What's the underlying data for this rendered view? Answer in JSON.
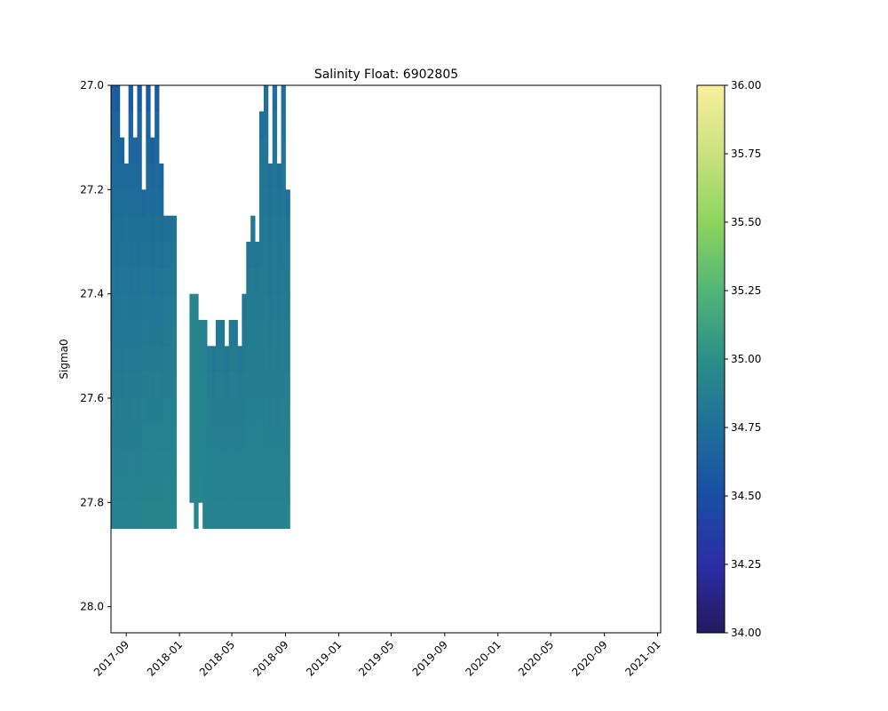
{
  "chart_data": {
    "type": "heatmap",
    "title": "Salinity Float: 6902805",
    "xlabel": "",
    "ylabel": "Sigma0",
    "x_axis_type": "date",
    "xlim": [
      "2017-07-28",
      "2021-01-08"
    ],
    "ylim": [
      28.05,
      27.0
    ],
    "y_inverted": true,
    "x_ticks": [
      "2017-09",
      "2018-01",
      "2018-05",
      "2018-09",
      "2019-01",
      "2019-05",
      "2019-09",
      "2020-01",
      "2020-05",
      "2020-09",
      "2021-01"
    ],
    "y_ticks": [
      "27.0",
      "27.2",
      "27.4",
      "27.6",
      "27.8",
      "28.0"
    ],
    "colormap": "summer-like blue-green-yellow",
    "colorbar": {
      "vmin": 34.0,
      "vmax": 36.0,
      "ticks": [
        "34.00",
        "34.25",
        "34.50",
        "34.75",
        "35.00",
        "35.25",
        "35.50",
        "35.75",
        "36.00"
      ],
      "colors": [
        {
          "v": 34.0,
          "c": "#231a5e"
        },
        {
          "v": 34.25,
          "c": "#2b2ea6"
        },
        {
          "v": 34.5,
          "c": "#1a4ea4"
        },
        {
          "v": 34.75,
          "c": "#1f6f98"
        },
        {
          "v": 35.0,
          "c": "#2a8f88"
        },
        {
          "v": 35.25,
          "c": "#52b577"
        },
        {
          "v": 35.5,
          "c": "#8ed45e"
        },
        {
          "v": 35.75,
          "c": "#c9e27f"
        },
        {
          "v": 36.0,
          "c": "#f9ef9f"
        }
      ]
    },
    "profiles": [
      {
        "date": "2017-07-28",
        "smin": 27.0,
        "smax": 27.85,
        "s_top": 34.62,
        "s_bot": 34.9
      },
      {
        "date": "2017-08-07",
        "smin": 27.0,
        "smax": 27.85,
        "s_top": 34.6,
        "s_bot": 34.9
      },
      {
        "date": "2017-08-17",
        "smin": 27.1,
        "smax": 27.85,
        "s_top": 34.66,
        "s_bot": 34.9
      },
      {
        "date": "2017-08-27",
        "smin": 27.15,
        "smax": 27.85,
        "s_top": 34.7,
        "s_bot": 34.9
      },
      {
        "date": "2017-09-06",
        "smin": 27.0,
        "smax": 27.85,
        "s_top": 34.6,
        "s_bot": 34.9
      },
      {
        "date": "2017-09-16",
        "smin": 27.1,
        "smax": 27.85,
        "s_top": 34.66,
        "s_bot": 34.9
      },
      {
        "date": "2017-09-26",
        "smin": 27.0,
        "smax": 27.85,
        "s_top": 34.6,
        "s_bot": 34.9
      },
      {
        "date": "2017-10-06",
        "smin": 27.2,
        "smax": 27.85,
        "s_top": 34.7,
        "s_bot": 34.92
      },
      {
        "date": "2017-10-16",
        "smin": 27.0,
        "smax": 27.85,
        "s_top": 34.6,
        "s_bot": 34.92
      },
      {
        "date": "2017-10-26",
        "smin": 27.1,
        "smax": 27.85,
        "s_top": 34.62,
        "s_bot": 34.92
      },
      {
        "date": "2017-11-05",
        "smin": 27.0,
        "smax": 27.85,
        "s_top": 34.6,
        "s_bot": 34.92
      },
      {
        "date": "2017-11-15",
        "smin": 27.15,
        "smax": 27.85,
        "s_top": 34.66,
        "s_bot": 34.92
      },
      {
        "date": "2017-11-25",
        "smin": 27.25,
        "smax": 27.85,
        "s_top": 34.75,
        "s_bot": 34.92
      },
      {
        "date": "2017-12-05",
        "smin": 27.25,
        "smax": 27.85,
        "s_top": 34.75,
        "s_bot": 34.92
      },
      {
        "date": "2017-12-15",
        "smin": 27.25,
        "smax": 27.85,
        "s_top": 34.78,
        "s_bot": 34.92
      },
      {
        "date": "2018-01-24",
        "smin": 27.4,
        "smax": 27.8,
        "s_top": 34.92,
        "s_bot": 34.92
      },
      {
        "date": "2018-02-03",
        "smin": 27.4,
        "smax": 27.85,
        "s_top": 34.92,
        "s_bot": 34.92
      },
      {
        "date": "2018-02-13",
        "smin": 27.45,
        "smax": 27.8,
        "s_top": 34.9,
        "s_bot": 34.92
      },
      {
        "date": "2018-02-23",
        "smin": 27.45,
        "smax": 27.85,
        "s_top": 34.88,
        "s_bot": 34.9
      },
      {
        "date": "2018-03-05",
        "smin": 27.5,
        "smax": 27.85,
        "s_top": 34.85,
        "s_bot": 34.9
      },
      {
        "date": "2018-03-15",
        "smin": 27.5,
        "smax": 27.85,
        "s_top": 34.82,
        "s_bot": 34.9
      },
      {
        "date": "2018-03-25",
        "smin": 27.45,
        "smax": 27.85,
        "s_top": 34.82,
        "s_bot": 34.9
      },
      {
        "date": "2018-04-04",
        "smin": 27.45,
        "smax": 27.85,
        "s_top": 34.82,
        "s_bot": 34.9
      },
      {
        "date": "2018-04-14",
        "smin": 27.5,
        "smax": 27.85,
        "s_top": 34.82,
        "s_bot": 34.9
      },
      {
        "date": "2018-04-24",
        "smin": 27.45,
        "smax": 27.85,
        "s_top": 34.82,
        "s_bot": 34.9
      },
      {
        "date": "2018-05-04",
        "smin": 27.45,
        "smax": 27.85,
        "s_top": 34.82,
        "s_bot": 34.9
      },
      {
        "date": "2018-05-14",
        "smin": 27.5,
        "smax": 27.85,
        "s_top": 34.82,
        "s_bot": 34.9
      },
      {
        "date": "2018-05-24",
        "smin": 27.4,
        "smax": 27.85,
        "s_top": 34.8,
        "s_bot": 34.9
      },
      {
        "date": "2018-06-03",
        "smin": 27.3,
        "smax": 27.85,
        "s_top": 34.8,
        "s_bot": 34.9
      },
      {
        "date": "2018-06-13",
        "smin": 27.25,
        "smax": 27.85,
        "s_top": 34.8,
        "s_bot": 34.9
      },
      {
        "date": "2018-06-23",
        "smin": 27.3,
        "smax": 27.85,
        "s_top": 34.8,
        "s_bot": 34.9
      },
      {
        "date": "2018-07-03",
        "smin": 27.05,
        "smax": 27.85,
        "s_top": 34.75,
        "s_bot": 34.9
      },
      {
        "date": "2018-07-13",
        "smin": 27.0,
        "smax": 27.85,
        "s_top": 34.75,
        "s_bot": 34.9
      },
      {
        "date": "2018-07-23",
        "smin": 27.15,
        "smax": 27.85,
        "s_top": 34.75,
        "s_bot": 34.9
      },
      {
        "date": "2018-08-02",
        "smin": 27.0,
        "smax": 27.85,
        "s_top": 34.75,
        "s_bot": 34.9
      },
      {
        "date": "2018-08-12",
        "smin": 27.15,
        "smax": 27.85,
        "s_top": 34.75,
        "s_bot": 34.9
      },
      {
        "date": "2018-08-22",
        "smin": 27.0,
        "smax": 27.85,
        "s_top": 34.75,
        "s_bot": 34.9
      },
      {
        "date": "2018-09-01",
        "smin": 27.2,
        "smax": 27.85,
        "s_top": 34.75,
        "s_bot": 34.9
      }
    ]
  }
}
